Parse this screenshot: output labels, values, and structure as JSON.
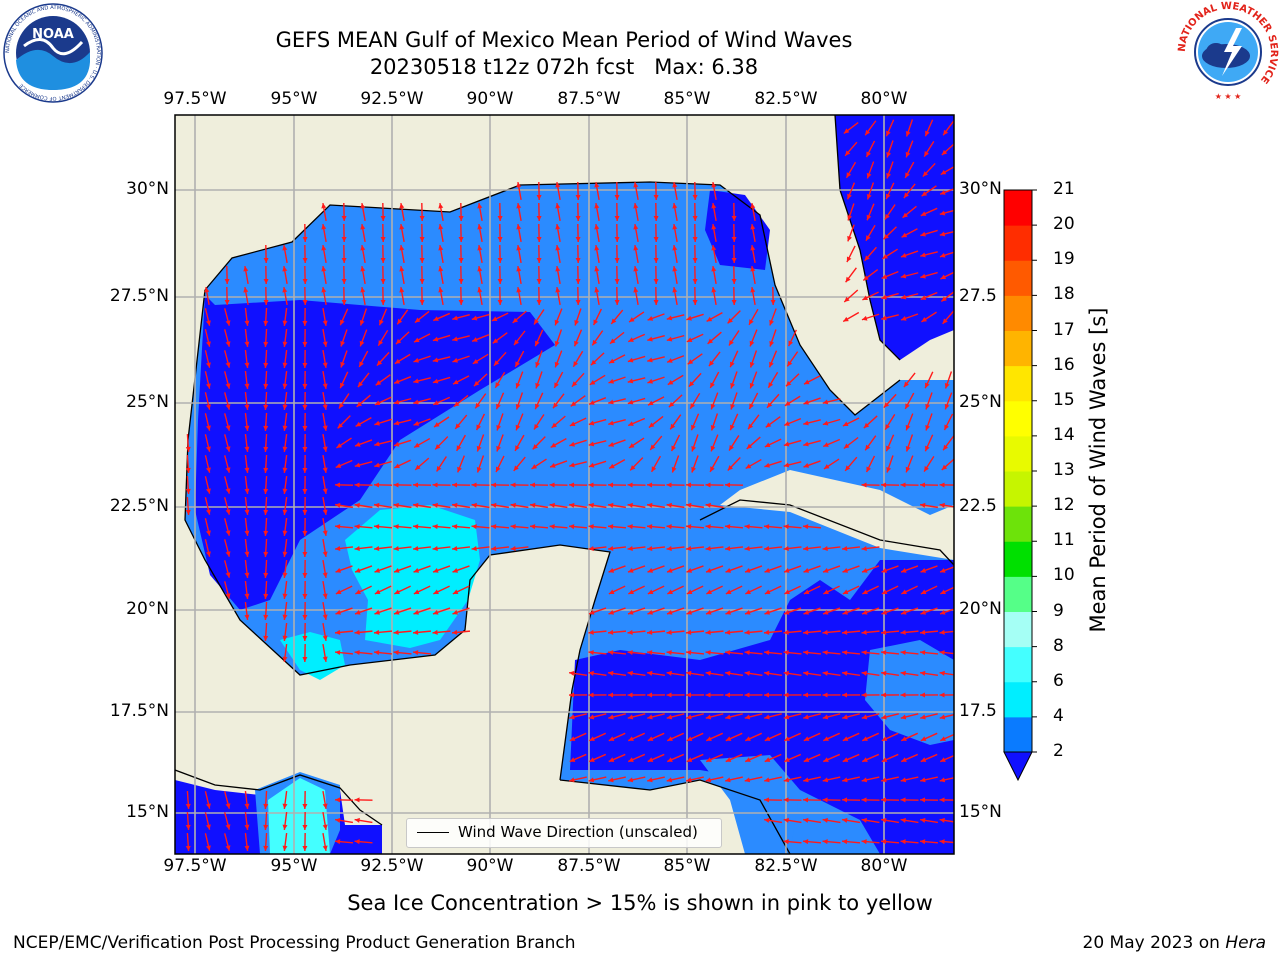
{
  "title": {
    "line1": "GEFS MEAN Gulf of Mexico Mean Period of Wind Waves",
    "line2": "20230518 t12z 072h fcst   Max: 6.38"
  },
  "axes": {
    "lon_ticks": [
      "97.5°W",
      "95°W",
      "92.5°W",
      "90°W",
      "87.5°W",
      "85°W",
      "82.5°W",
      "80°W"
    ],
    "lat_ticks_left": [
      "30°N",
      "27.5°N",
      "25°N",
      "22.5°N",
      "20°N",
      "17.5°N",
      "15°N"
    ],
    "lat_ticks_right": [
      "30°N",
      "27.5",
      "25°N",
      "22.5",
      "20°N",
      "17.5",
      "15°N"
    ]
  },
  "colorbar": {
    "title": "Mean Period of Wind Waves [s]",
    "ticks": [
      "2",
      "4",
      "6",
      "8",
      "9",
      "10",
      "11",
      "12",
      "13",
      "14",
      "15",
      "16",
      "17",
      "18",
      "19",
      "20",
      "21"
    ],
    "colors": [
      "#0a7bff",
      "#00eeff",
      "#44ffff",
      "#a5fff5",
      "#55ff88",
      "#00e000",
      "#6de30a",
      "#c6f500",
      "#e8fa00",
      "#ffff00",
      "#ffe600",
      "#ffb400",
      "#ff8a00",
      "#ff5a00",
      "#ff2d00",
      "#ff0000"
    ],
    "extend_color": "#1010ff"
  },
  "legend": {
    "label": "Wind Wave Direction (unscaled)"
  },
  "footer": {
    "ice_note": "Sea Ice Concentration > 15% is shown in pink to yellow",
    "org": "NCEP/EMC/Verification Post Processing Product Generation Branch",
    "date": "20 May 2023 on ",
    "machine": "Hera"
  },
  "logos": {
    "noaa": {
      "text": "NOAA",
      "ring": "NATIONAL OCEANIC AND ATMOSPHERIC ADMINISTRATION · U.S. DEPARTMENT OF COMMERCE"
    },
    "nws": {
      "ring": "NATIONAL WEATHER SERVICE"
    }
  },
  "colors": {
    "land": "#efeedc",
    "wave_low": "#1010ff",
    "wave_2_4": "#2b8bff",
    "wave_4_6": "#00eeff",
    "wave_6_8": "#44ffff",
    "arrow": "#ff1a1a",
    "grid": "#b0b0b0"
  }
}
